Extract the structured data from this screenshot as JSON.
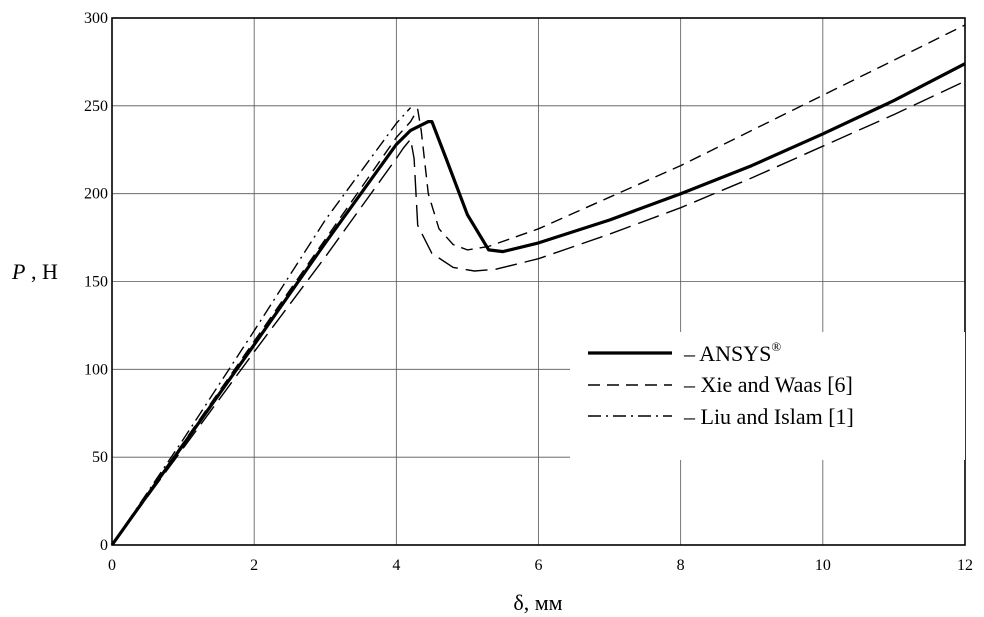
{
  "chart_data": {
    "type": "line",
    "title": "",
    "xlabel": "δ, мм",
    "ylabel_italic": "P",
    "ylabel_rest": " , Н",
    "xlim": [
      0,
      12
    ],
    "ylim": [
      0,
      300
    ],
    "xticks": [
      "0",
      "2",
      "4",
      "6",
      "8",
      "10",
      "12"
    ],
    "yticks": [
      "0",
      "50",
      "100",
      "150",
      "200",
      "250",
      "300"
    ],
    "grid": true,
    "legend_position": "right",
    "series": [
      {
        "name": "– ANSYS",
        "name_sup": "®",
        "style": "solid",
        "x": [
          0,
          1,
          2,
          3,
          4,
          4.2,
          4.45,
          4.5,
          4.7,
          5.0,
          5.3,
          5.5,
          6,
          7,
          8,
          9,
          10,
          11,
          12
        ],
        "y": [
          0,
          57,
          114,
          172,
          228,
          236,
          241,
          241,
          220,
          188,
          168,
          167,
          172,
          185,
          200,
          216,
          234,
          253,
          274
        ]
      },
      {
        "name": "– Xie and Waas [6]",
        "style": "dashed",
        "x": [
          0,
          1,
          2,
          3,
          4,
          4.2,
          4.3,
          4.35,
          4.45,
          4.6,
          4.8,
          5.0,
          5.3,
          6,
          7,
          8,
          9,
          10,
          11,
          12
        ],
        "y": [
          0,
          58,
          116,
          174,
          232,
          241,
          248,
          236,
          200,
          180,
          171,
          168,
          170,
          180,
          198,
          216,
          236,
          256,
          276,
          296
        ]
      },
      {
        "name": "– Liu and Islam [1]",
        "style": "longdash",
        "x": [
          0,
          1,
          2,
          3,
          4,
          4.1,
          4.2,
          4.25,
          4.3,
          4.5,
          4.8,
          5.1,
          5.4,
          6,
          7,
          8,
          9,
          10,
          11,
          12
        ],
        "y": [
          0,
          55,
          110,
          164,
          220,
          226,
          231,
          220,
          182,
          166,
          158,
          156,
          157,
          163,
          177,
          192,
          209,
          227,
          245,
          264
        ]
      },
      {
        "name": "",
        "style": "dashdot",
        "x": [
          0,
          1,
          2,
          3,
          4,
          4.2
        ],
        "y": [
          0,
          60,
          122,
          185,
          240,
          249
        ]
      }
    ]
  }
}
